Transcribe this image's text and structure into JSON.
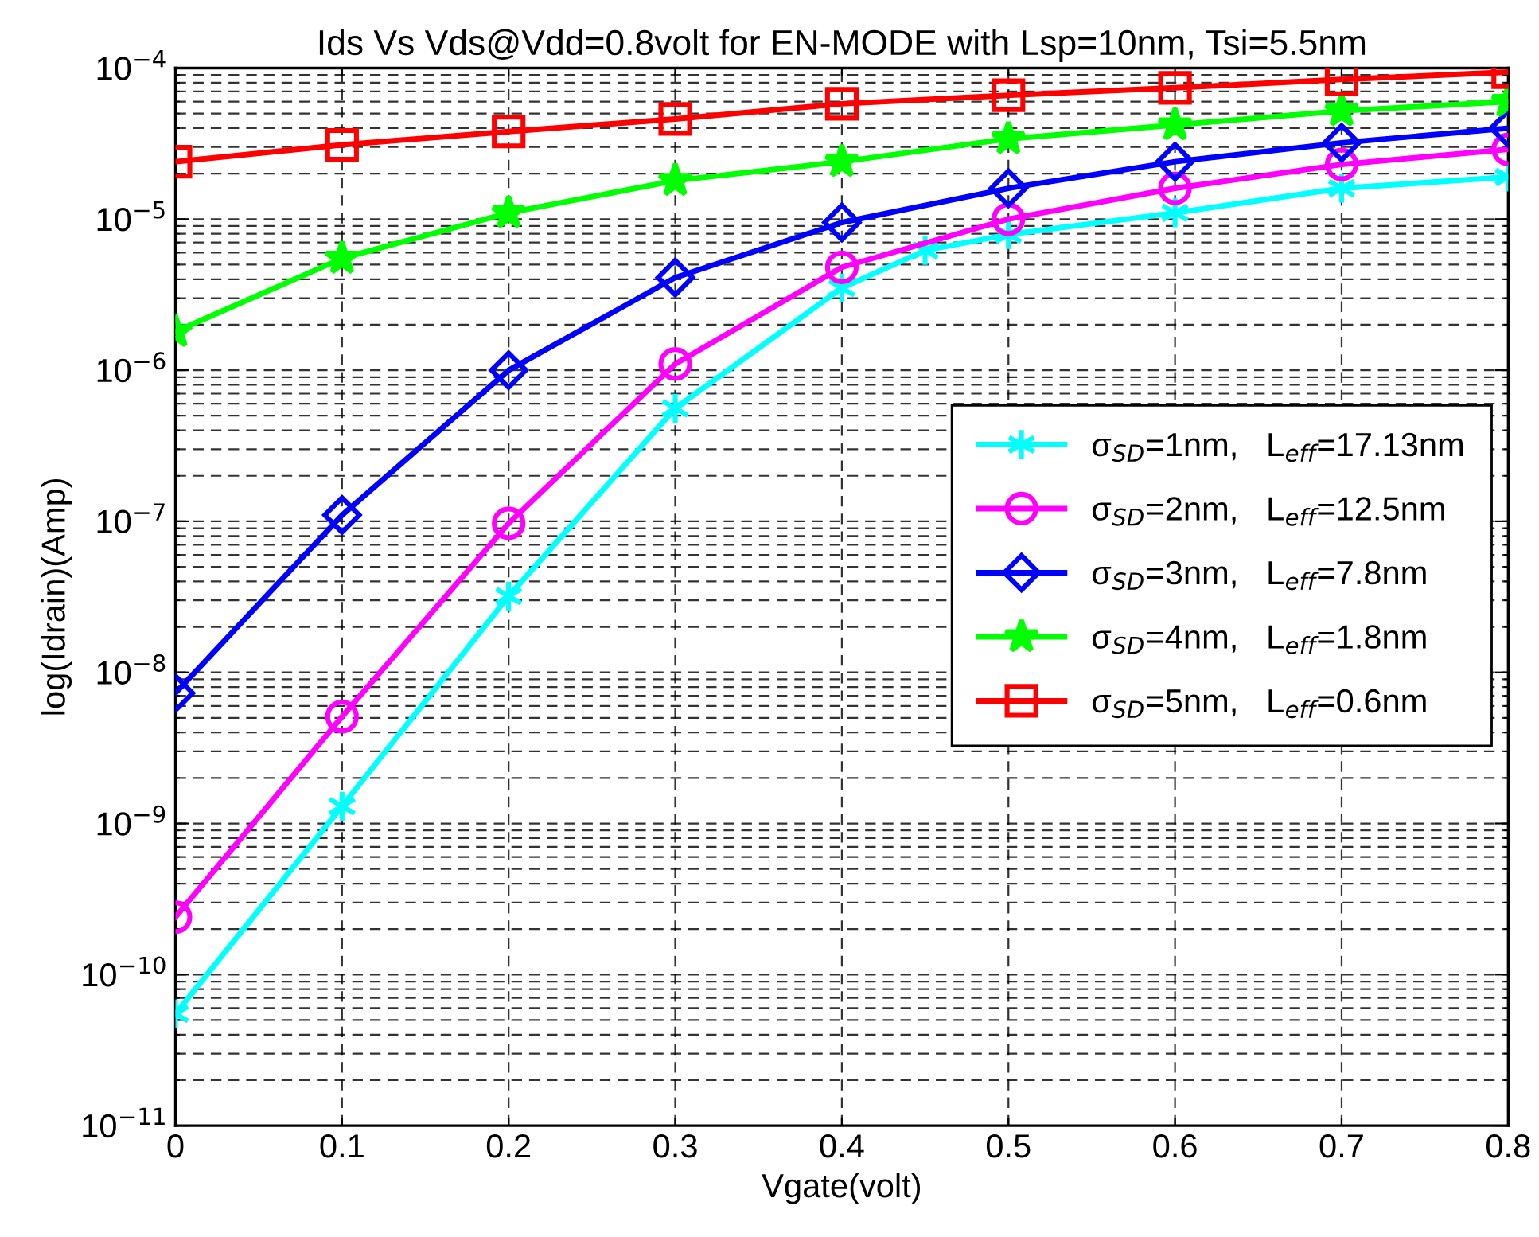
{
  "chart_data": {
    "type": "line",
    "title": "Ids Vs Vds@Vdd=0.8volt for EN-MODE with Lsp=10nm, Tsi=5.5nm",
    "xlabel": "Vgate(volt)",
    "ylabel": "log(Idrain)(Amp)",
    "x": [
      0,
      0.1,
      0.2,
      0.3,
      0.4,
      0.5,
      0.6,
      0.7,
      0.8
    ],
    "series": [
      {
        "name": "σ$_{SD}$=1nm,   L$_{eff}$=17.13nm",
        "color": "#00ffff",
        "marker": "cross",
        "x": [
          0,
          0.1,
          0.2,
          0.3,
          0.4,
          0.45,
          0.5,
          0.6,
          0.7,
          0.8
        ],
        "values": [
          5.5e-11,
          1.3e-09,
          3.2e-08,
          5.6e-07,
          3.5e-06,
          6.2e-06,
          7.9e-06,
          1.1e-05,
          1.6e-05,
          1.9e-05
        ]
      },
      {
        "name": "σ$_{SD}$=2nm,   L$_{eff}$=12.5nm",
        "color": "#ff00ff",
        "marker": "circle",
        "values": [
          2.4e-10,
          5.1e-09,
          9.7e-08,
          1.1e-06,
          4.8e-06,
          1e-05,
          1.6e-05,
          2.3e-05,
          2.9e-05
        ]
      },
      {
        "name": "σ$_{SD}$=3nm,   L$_{eff}$=7.8nm",
        "color": "#0000ff",
        "marker": "diamond",
        "values": [
          7.3e-09,
          1.1e-07,
          1e-06,
          4.1e-06,
          9.5e-06,
          1.6e-05,
          2.4e-05,
          3.2e-05,
          4e-05
        ]
      },
      {
        "name": "σ$_{SD}$=4nm,   L$_{eff}$=1.8nm",
        "color": "#00ff00",
        "marker": "star",
        "values": [
          1.8e-06,
          5.5e-06,
          1.1e-05,
          1.8e-05,
          2.4e-05,
          3.4e-05,
          4.2e-05,
          5.2e-05,
          6e-05
        ]
      },
      {
        "name": "σ$_{SD}$=5nm,   L$_{eff}$=0.6nm",
        "color": "#ff0000",
        "marker": "square",
        "values": [
          2.4e-05,
          3.1e-05,
          3.8e-05,
          4.6e-05,
          5.8e-05,
          6.6e-05,
          7.4e-05,
          8.4e-05,
          9.4e-05
        ]
      }
    ],
    "log": "y",
    "xlim": [
      0,
      0.8
    ],
    "xticks": [
      0,
      0.1,
      0.2,
      0.3,
      0.4,
      0.5,
      0.6,
      0.7,
      0.8
    ],
    "ylim": [
      1e-11,
      0.0001
    ],
    "yticks": [
      {
        "value": 1e-11,
        "label": "10$^{−11}$"
      },
      {
        "value": 1e-10,
        "label": "10$^{−10}$"
      },
      {
        "value": 1e-09,
        "label": "10$^{−9}$"
      },
      {
        "value": 1e-08,
        "label": "10$^{−8}$"
      },
      {
        "value": 1e-07,
        "label": "10$^{−7}$"
      },
      {
        "value": 1e-06,
        "label": "10$^{−6}$"
      },
      {
        "value": 1e-05,
        "label": "10$^{−5}$"
      },
      {
        "value": 0.0001,
        "label": "10$^{−4}$"
      }
    ],
    "grid": true,
    "legend": "right",
    "line_style": "solid"
  }
}
